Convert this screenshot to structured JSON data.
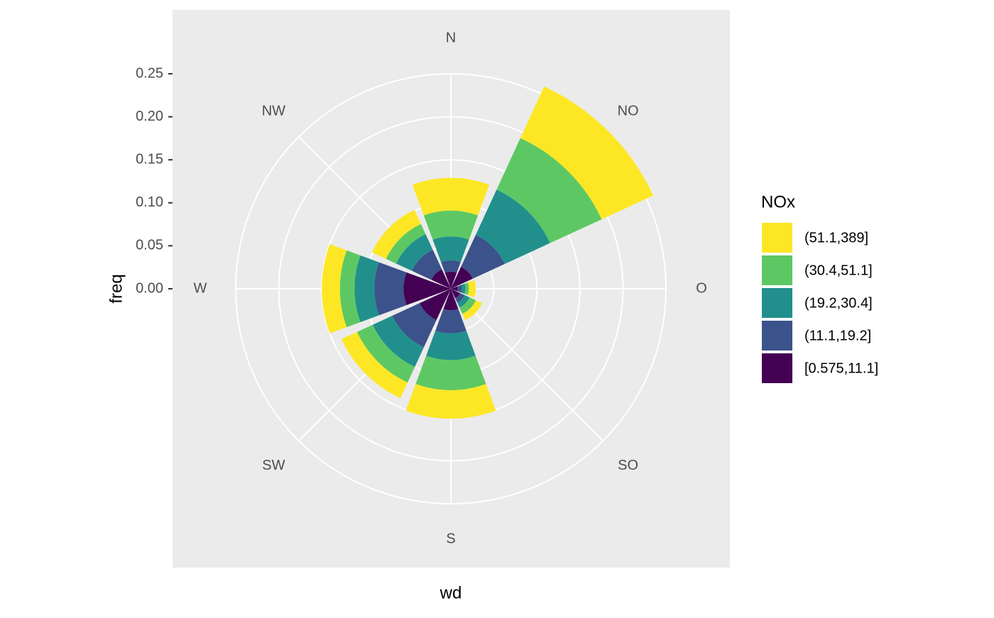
{
  "chart_data": {
    "type": "windrose",
    "x_label": "wd",
    "y_label": "freq",
    "categories": [
      "N",
      "NO",
      "O",
      "SO",
      "S",
      "SW",
      "W",
      "NW"
    ],
    "legend_title": "NOx",
    "series": [
      {
        "name": "[0.575,11.1]",
        "color": "#440154",
        "values": [
          0.02,
          0.028,
          0.008,
          0.012,
          0.025,
          0.04,
          0.055,
          0.025
        ]
      },
      {
        "name": "(11.1,19.2]",
        "color": "#3b528b",
        "values": [
          0.013,
          0.041,
          0.005,
          0.006,
          0.027,
          0.035,
          0.034,
          0.025
        ]
      },
      {
        "name": "(19.2,30.4]",
        "color": "#21908c",
        "values": [
          0.028,
          0.058,
          0.004,
          0.006,
          0.031,
          0.025,
          0.023,
          0.02
        ]
      },
      {
        "name": "(30.4,51.1]",
        "color": "#5dc863",
        "values": [
          0.03,
          0.066,
          0.004,
          0.008,
          0.035,
          0.02,
          0.017,
          0.013
        ]
      },
      {
        "name": "(51.1,389]",
        "color": "#fde725",
        "values": [
          0.038,
          0.066,
          0.008,
          0.008,
          0.033,
          0.02,
          0.021,
          0.018
        ]
      }
    ],
    "ylim": [
      0,
      0.25
    ],
    "yticks": [
      {
        "value": 0,
        "label": "0.00"
      },
      {
        "value": 0.05,
        "label": "0.05"
      },
      {
        "value": 0.1,
        "label": "0.10"
      },
      {
        "value": 0.15,
        "label": "0.15"
      },
      {
        "value": 0.2,
        "label": "0.20"
      },
      {
        "value": 0.25,
        "label": "0.25"
      }
    ],
    "grid": true
  }
}
